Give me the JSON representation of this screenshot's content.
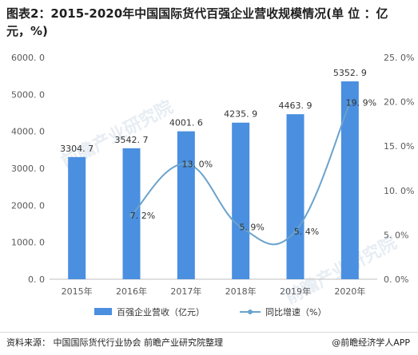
{
  "title": "图表2：2015-2020年中国国际货代百强企业营收规模情况(单 位 ：亿元，%)",
  "source": "资料来源： 中国国际货代行业协会 前瞻产业研究院整理",
  "brand": "@前瞻经济学人APP",
  "watermark": "前瞻产业研究院",
  "colors": {
    "bar": "#4a8fe0",
    "line": "#6aa2cc",
    "axis": "#bfbfbf"
  },
  "chart_data": {
    "type": "bar",
    "categories": [
      "2015年",
      "2016年",
      "2017年",
      "2018年",
      "2019年",
      "2020年"
    ],
    "series": [
      {
        "name": "百强企业营收（亿元）",
        "type": "bar",
        "axis": "left",
        "values": [
          3304.7,
          3542.7,
          4001.6,
          4235.9,
          4463.9,
          5352.9
        ],
        "labels": [
          "3304. 7",
          "3542. 7",
          "4001. 6",
          "4235. 9",
          "4463. 9",
          "5352. 9"
        ]
      },
      {
        "name": "同比增速（%）",
        "type": "line",
        "axis": "right",
        "values": [
          null,
          7.2,
          13.0,
          5.9,
          5.4,
          19.9
        ],
        "labels": [
          "",
          "7. 2%",
          "13. 0%",
          "5. 9%",
          "5. 4%",
          "19. 9%"
        ]
      }
    ],
    "y_left": {
      "ylim": [
        0,
        6000
      ],
      "ticks": [
        "0. 0",
        "1000. 0",
        "2000. 0",
        "3000. 0",
        "4000. 0",
        "5000. 0",
        "6000. 0"
      ]
    },
    "y_right": {
      "ylim": [
        0,
        25
      ],
      "ticks": [
        "0. 0%",
        "5. 0%",
        "10. 0%",
        "15. 0%",
        "20. 0%",
        "25. 0%"
      ]
    },
    "grid": false,
    "legend": "bottom"
  }
}
